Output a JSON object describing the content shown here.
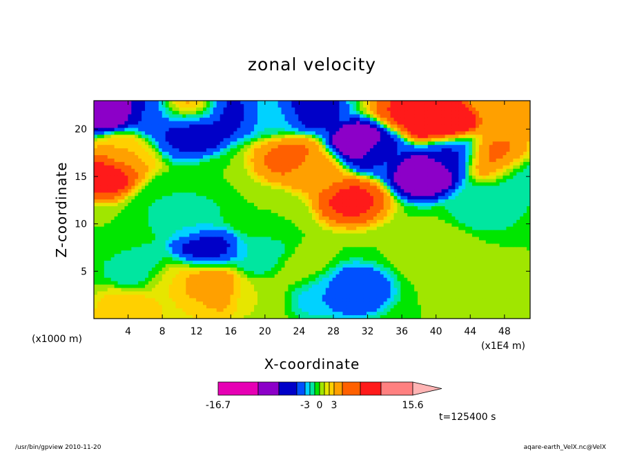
{
  "chart_data": {
    "type": "heatmap",
    "title": "zonal velocity",
    "xlabel": "X-coordinate",
    "ylabel": "Z-coordinate",
    "x_unit": "(x1E4 m)",
    "y_unit": "(x1000 m)",
    "xlim": [
      0,
      51
    ],
    "ylim": [
      0,
      23
    ],
    "x_ticks": [
      "4",
      "8",
      "12",
      "16",
      "20",
      "24",
      "28",
      "32",
      "36",
      "40",
      "44",
      "48"
    ],
    "y_ticks": [
      "5",
      "10",
      "15",
      "20"
    ],
    "x_tick_values": [
      4,
      8,
      12,
      16,
      20,
      24,
      28,
      32,
      36,
      40,
      44,
      48
    ],
    "y_tick_values": [
      5,
      10,
      15,
      20
    ],
    "colorbar": {
      "levels": [
        -16.7,
        -12,
        -7,
        -5,
        -3,
        -2,
        -1,
        0,
        1,
        2,
        3,
        5,
        7,
        12,
        15.6
      ],
      "labels": [
        "-16.7",
        "-3",
        "0",
        "3",
        "15.6"
      ],
      "label_values": [
        -16.7,
        -3,
        0,
        3,
        15.6
      ],
      "colors": [
        "#e600b4",
        "#8c00c8",
        "#0000c8",
        "#0050ff",
        "#00d2ff",
        "#00e6a0",
        "#00e600",
        "#a0e600",
        "#e6e600",
        "#ffd000",
        "#ffa000",
        "#ff6000",
        "#ff1a1a",
        "#ff8080",
        "#ffb4b4"
      ]
    },
    "features": [
      {
        "x": 1.5,
        "z": 15.2,
        "value": 9
      },
      {
        "x": 4,
        "z": 17.5,
        "value": 3
      },
      {
        "x": 1.5,
        "z": 22.3,
        "value": -12
      },
      {
        "x": 6.5,
        "z": 21.8,
        "value": -5
      },
      {
        "x": 9.5,
        "z": 19.5,
        "value": -5
      },
      {
        "x": 11.5,
        "z": 20.2,
        "value": -9
      },
      {
        "x": 11,
        "z": 21.9,
        "value": 5
      },
      {
        "x": 16,
        "z": 21.7,
        "value": -6
      },
      {
        "x": 21,
        "z": 21.5,
        "value": -2
      },
      {
        "x": 25,
        "z": 22.2,
        "value": -7
      },
      {
        "x": 31.5,
        "z": 18.3,
        "value": -11
      },
      {
        "x": 33,
        "z": 17.6,
        "value": -4
      },
      {
        "x": 38.5,
        "z": 15.3,
        "value": -10
      },
      {
        "x": 41.5,
        "z": 17.5,
        "value": -6
      },
      {
        "x": 40.5,
        "z": 20.6,
        "value": 13
      },
      {
        "x": 37,
        "z": 21.9,
        "value": 8
      },
      {
        "x": 47,
        "z": 17,
        "value": 6
      },
      {
        "x": 49,
        "z": 21.5,
        "value": 5
      },
      {
        "x": 46,
        "z": 12,
        "value": -2
      },
      {
        "x": 50,
        "z": 15,
        "value": -2
      },
      {
        "x": 30,
        "z": 12.5,
        "value": 8
      },
      {
        "x": 26,
        "z": 15.5,
        "value": 4
      },
      {
        "x": 23,
        "z": 16.8,
        "value": 6
      },
      {
        "x": 13.2,
        "z": 4.3,
        "value": 6
      },
      {
        "x": 13,
        "z": 6.8,
        "value": -7
      },
      {
        "x": 10.5,
        "z": 10.5,
        "value": -2
      },
      {
        "x": 5.5,
        "z": 5.5,
        "value": -2
      },
      {
        "x": 19.5,
        "z": 6.3,
        "value": -2
      },
      {
        "x": 26.5,
        "z": 2.8,
        "value": -3
      },
      {
        "x": 30.5,
        "z": 3,
        "value": -5
      },
      {
        "x": 4,
        "z": 0.6,
        "value": 3
      },
      {
        "x": 11,
        "z": 0.8,
        "value": 2
      },
      {
        "x": 14,
        "z": 2.5,
        "value": 4
      },
      {
        "x": 9.5,
        "z": 4.2,
        "value": 2
      },
      {
        "x": 19,
        "z": 2.5,
        "value": 1
      },
      {
        "x": 24,
        "z": 5,
        "value": 1
      },
      {
        "x": 44,
        "z": 4,
        "value": 1
      },
      {
        "x": 40,
        "z": 7,
        "value": 1
      },
      {
        "x": 8,
        "z": 12.5,
        "value": -1
      },
      {
        "x": 2,
        "z": 9,
        "value": 0
      },
      {
        "x": 21,
        "z": 11,
        "value": 0
      }
    ]
  },
  "annotations": {
    "time_label": "t=125400 s",
    "footer_left": "/usr/bin/gpview   2010-11-20",
    "footer_right": "aqare-earth_VelX.nc@VelX"
  }
}
